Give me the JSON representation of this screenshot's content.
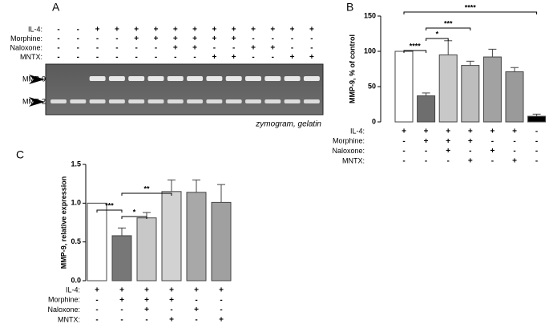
{
  "panel_a": {
    "label": "A",
    "treatments": [
      {
        "label": "IL-4:",
        "signs": [
          "-",
          "-",
          "+",
          "+",
          "+",
          "+",
          "+",
          "+",
          "+",
          "+",
          "+",
          "+",
          "+",
          "+"
        ]
      },
      {
        "label": "Morphine:",
        "signs": [
          "-",
          "-",
          "-",
          "-",
          "+",
          "+",
          "+",
          "+",
          "+",
          "+",
          "-",
          "-",
          "-",
          "-"
        ]
      },
      {
        "label": "Naloxone:",
        "signs": [
          "-",
          "-",
          "-",
          "-",
          "-",
          "-",
          "+",
          "+",
          "-",
          "-",
          "+",
          "+",
          "-",
          "-"
        ]
      },
      {
        "label": "MNTX:",
        "signs": [
          "-",
          "-",
          "-",
          "-",
          "-",
          "-",
          "-",
          "-",
          "+",
          "+",
          "-",
          "-",
          "+",
          "+"
        ]
      }
    ],
    "bands": [
      "MMP-9",
      "MMP-2"
    ],
    "caption": "zymogram, gelatin"
  },
  "chart_data": [
    {
      "type": "bar",
      "panel": "B",
      "ylabel": "MMP-9, % of control",
      "values": [
        100,
        37,
        95,
        80,
        92,
        71,
        8
      ],
      "errors": [
        0,
        4,
        20,
        6,
        11,
        6,
        3
      ],
      "colors": [
        "#ffffff",
        "#6e6e6e",
        "#c8c8c8",
        "#bdbdbd",
        "#a2a2a2",
        "#9a9a9a",
        "#000000"
      ],
      "ylim": [
        0,
        150
      ],
      "yticks": [
        0,
        50,
        100,
        150
      ],
      "treatments": [
        {
          "label": "IL-4:",
          "signs": [
            "+",
            "+",
            "+",
            "+",
            "+",
            "+",
            "-"
          ]
        },
        {
          "label": "Morphine:",
          "signs": [
            "-",
            "+",
            "+",
            "+",
            "-",
            "-",
            "-"
          ]
        },
        {
          "label": "Naloxone:",
          "signs": [
            "-",
            "-",
            "+",
            "-",
            "+",
            "-",
            "-"
          ]
        },
        {
          "label": "MNTX:",
          "signs": [
            "-",
            "-",
            "-",
            "+",
            "-",
            "+",
            "-"
          ]
        }
      ],
      "significance": [
        {
          "from": 0,
          "to": 6,
          "label": "****"
        },
        {
          "from": 1,
          "to": 3,
          "label": "***"
        },
        {
          "from": 1,
          "to": 2,
          "label": "*"
        },
        {
          "from": 0,
          "to": 1,
          "label": "****"
        }
      ]
    },
    {
      "type": "bar",
      "panel": "C",
      "ylabel": "MMP-9, relative expression",
      "values": [
        1.0,
        0.58,
        0.81,
        1.15,
        1.14,
        1.01
      ],
      "errors": [
        0,
        0.1,
        0.07,
        0.15,
        0.16,
        0.23
      ],
      "colors": [
        "#ffffff",
        "#777777",
        "#c8c8c8",
        "#d2d2d2",
        "#a8a8a8",
        "#a0a0a0"
      ],
      "ylim": [
        0,
        1.5
      ],
      "yticks": [
        {
          "value": 0,
          "label": "0.0"
        },
        {
          "value": 0.5,
          "label": "0.5"
        },
        {
          "value": 1,
          "label": "1.0"
        },
        {
          "value": 1.5,
          "label": "1.5"
        }
      ],
      "treatments": [
        {
          "label": "IL-4:",
          "signs": [
            "+",
            "+",
            "+",
            "+",
            "+",
            "+"
          ]
        },
        {
          "label": "Morphine:",
          "signs": [
            "-",
            "+",
            "+",
            "+",
            "-",
            "-"
          ]
        },
        {
          "label": "Naloxone:",
          "signs": [
            "-",
            "-",
            "+",
            "-",
            "+",
            "-"
          ]
        },
        {
          "label": "MNTX:",
          "signs": [
            "-",
            "-",
            "-",
            "+",
            "-",
            "+"
          ]
        }
      ],
      "significance": [
        {
          "from": 0,
          "to": 1,
          "label": "***"
        },
        {
          "from": 1,
          "to": 2,
          "label": "*"
        },
        {
          "from": 1,
          "to": 3,
          "label": "**"
        }
      ]
    }
  ]
}
